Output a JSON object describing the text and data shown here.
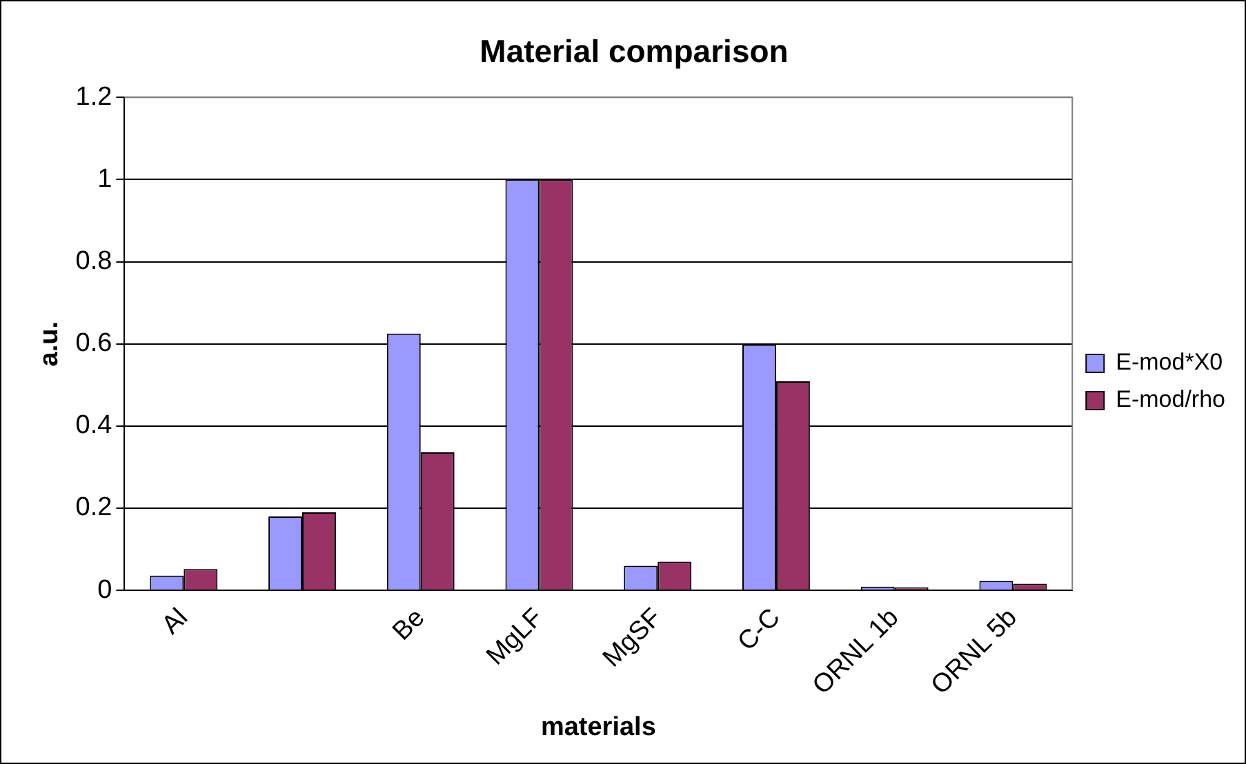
{
  "chart_data": {
    "type": "bar",
    "title": "Material comparison",
    "xlabel": "materials",
    "ylabel": "a.u.",
    "categories": [
      "Al",
      null,
      "Be",
      "MgLF",
      "MgSF",
      "C-C",
      "ORNL 1b",
      "ORNL 5b"
    ],
    "series": [
      {
        "name": "E-mod*X0",
        "color": "#9999ff",
        "values": [
          0.036,
          0.18,
          0.625,
          1,
          0.06,
          0.598,
          0.009,
          0.023
        ]
      },
      {
        "name": "E-mod/rho",
        "color": "#993366",
        "values": [
          0.052,
          0.19,
          0.336,
          1,
          0.07,
          0.509,
          0.007,
          0.016
        ]
      }
    ],
    "ylim": [
      0,
      1.2
    ],
    "yticks": [
      0,
      0.2,
      0.4,
      0.6,
      0.8,
      1,
      1.2
    ],
    "grid": "y",
    "legend": "right"
  }
}
